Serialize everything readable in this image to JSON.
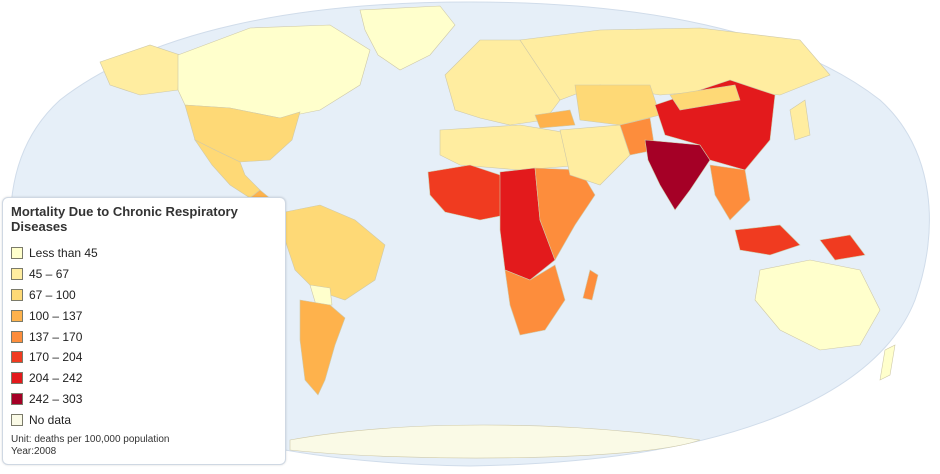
{
  "legend": {
    "title": "Mortality Due to Chronic Respiratory Diseases",
    "items": [
      {
        "label": "Less than 45",
        "color": "#ffffcc"
      },
      {
        "label": "45 – 67",
        "color": "#ffeda0"
      },
      {
        "label": "67 – 100",
        "color": "#fed976"
      },
      {
        "label": "100 – 137",
        "color": "#feb24c"
      },
      {
        "label": "137 – 170",
        "color": "#fd8d3c"
      },
      {
        "label": "170 – 204",
        "color": "#f03b20"
      },
      {
        "label": "204 – 242",
        "color": "#e31a1c"
      },
      {
        "label": "242 – 303",
        "color": "#a50026"
      },
      {
        "label": "No data",
        "color": "#fafae6"
      }
    ],
    "unit": "Unit: deaths per 100,000 population",
    "year": "Year:2008"
  },
  "colors": {
    "ocean": "#e6eff8",
    "border": "#cfc9a8"
  }
}
